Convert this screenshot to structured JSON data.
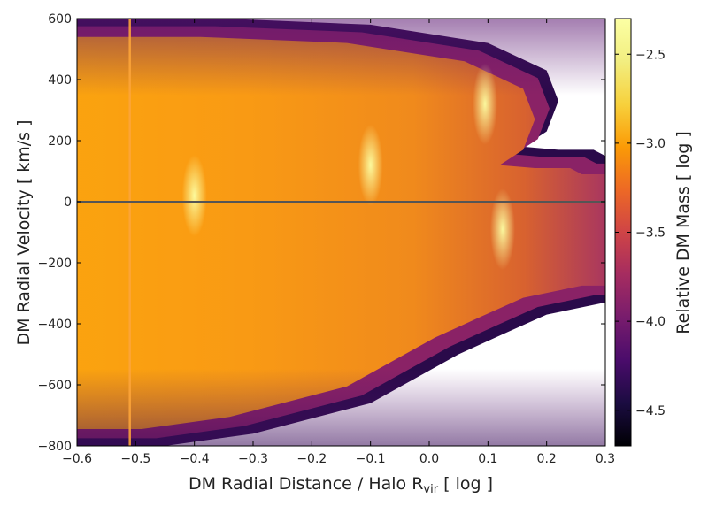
{
  "chart_data": {
    "type": "heatmap",
    "title": "",
    "xlabel": "DM Radial Distance / Halo R",
    "xlabel_sub": "vir",
    "xlabel_suffix": " [ log ]",
    "ylabel": "DM Radial Velocity [ km/s ]",
    "colorbar_label": "Relative DM Mass [ log ]",
    "colormap": "inferno",
    "xlim": [
      -0.6,
      0.3
    ],
    "ylim": [
      -800,
      600
    ],
    "clim": [
      -4.7,
      -2.3
    ],
    "x_ticks": [
      -0.6,
      -0.5,
      -0.4,
      -0.3,
      -0.2,
      -0.1,
      0.0,
      0.1,
      0.2,
      0.3
    ],
    "x_tick_labels": [
      "−0.6",
      "−0.5",
      "−0.4",
      "−0.3",
      "−0.2",
      "−0.1",
      "0.0",
      "0.1",
      "0.2",
      "0.3"
    ],
    "y_ticks": [
      600,
      400,
      200,
      0,
      -200,
      -400,
      -600,
      -800
    ],
    "y_tick_labels": [
      "600",
      "400",
      "200",
      "0",
      "−200",
      "−400",
      "−600",
      "−800"
    ],
    "colorbar_ticks": [
      -2.5,
      -3.0,
      -3.5,
      -4.0,
      -4.5
    ],
    "colorbar_tick_labels": [
      "−2.5",
      "−3.0",
      "−3.5",
      "−4.0",
      "−4.5"
    ],
    "reference_lines": [
      {
        "orientation": "horizontal",
        "value": 0,
        "color": "#555555"
      }
    ],
    "features": {
      "vertical_streak_x": -0.51,
      "upper_envelope": [
        [
          -0.6,
          600
        ],
        [
          -0.35,
          600
        ],
        [
          -0.1,
          580
        ],
        [
          0.1,
          520
        ],
        [
          0.2,
          430
        ],
        [
          0.22,
          330
        ],
        [
          0.2,
          230
        ],
        [
          0.16,
          180
        ],
        [
          0.22,
          170
        ],
        [
          0.28,
          170
        ],
        [
          0.3,
          150
        ]
      ],
      "lower_envelope": [
        [
          -0.6,
          -800
        ],
        [
          -0.45,
          -800
        ],
        [
          -0.3,
          -760
        ],
        [
          -0.1,
          -660
        ],
        [
          0.05,
          -500
        ],
        [
          0.13,
          -430
        ],
        [
          0.2,
          -370
        ],
        [
          0.3,
          -330
        ]
      ],
      "hotspots": [
        {
          "x": 0.125,
          "y": -90,
          "value": -2.4
        },
        {
          "x": 0.095,
          "y": 320,
          "value": -2.6
        },
        {
          "x": -0.1,
          "y": 120,
          "value": -2.7
        },
        {
          "x": -0.4,
          "y": 20,
          "value": -2.8
        }
      ]
    }
  }
}
